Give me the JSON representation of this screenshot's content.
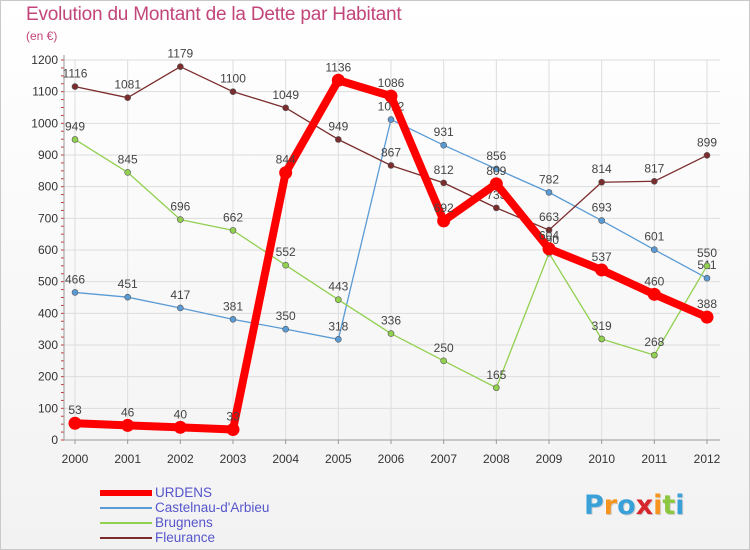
{
  "title": "Evolution du Montant de la Dette par Habitant",
  "unit_label": "(en €)",
  "chart_data": {
    "type": "line",
    "title": "Evolution du Montant de la Dette par Habitant",
    "subtitle": "(en €)",
    "xlabel": "",
    "ylabel": "",
    "x": [
      "2000",
      "2001",
      "2002",
      "2003",
      "2004",
      "2005",
      "2006",
      "2007",
      "2008",
      "2009",
      "2010",
      "2011",
      "2012"
    ],
    "ylim": [
      0,
      1200
    ],
    "yticks": [
      0,
      100,
      200,
      300,
      400,
      500,
      600,
      700,
      800,
      900,
      1000,
      1100,
      1200
    ],
    "grid": true,
    "legend_position": "bottom-left",
    "series": [
      {
        "name": "URDENS",
        "color": "#ff0000",
        "emphasis": true,
        "values": [
          53,
          46,
          40,
          33,
          844,
          1136,
          1086,
          692,
          809,
          604,
          537,
          460,
          388
        ],
        "labels": [
          "53",
          "46",
          "40",
          "33",
          "844",
          "1136",
          "1086",
          "692",
          "809",
          "604",
          "537",
          "460",
          "388"
        ]
      },
      {
        "name": "Castelnau-d'Arbieu",
        "color": "#5b9bd5",
        "values": [
          466,
          451,
          417,
          381,
          350,
          318,
          1012,
          931,
          856,
          782,
          693,
          601,
          511
        ],
        "labels": [
          "466",
          "451",
          "417",
          "381",
          "350",
          "318",
          "1012",
          "931",
          "856",
          "782",
          "693",
          "601",
          "511"
        ]
      },
      {
        "name": "Brugnens",
        "color": "#92d050",
        "values": [
          949,
          845,
          696,
          662,
          552,
          443,
          336,
          250,
          165,
          590,
          319,
          268,
          550
        ],
        "labels": [
          "949",
          "845",
          "696",
          "662",
          "552",
          "443",
          "336",
          "250",
          "165",
          "590",
          "319",
          "268",
          "550"
        ]
      },
      {
        "name": "Fleurance",
        "color": "#7b2c2c",
        "values": [
          1116,
          1081,
          1179,
          1100,
          1049,
          949,
          867,
          812,
          733,
          663,
          814,
          817,
          899
        ],
        "labels": [
          "1116",
          "1081",
          "1179",
          "1100",
          "1049",
          "949",
          "867",
          "812",
          "733",
          "663",
          "814",
          "817",
          "899"
        ]
      }
    ]
  },
  "legend": {
    "items": [
      {
        "label": "URDENS",
        "color": "#ff0000"
      },
      {
        "label": "Castelnau-d'Arbieu",
        "color": "#5b9bd5"
      },
      {
        "label": "Brugnens",
        "color": "#92d050"
      },
      {
        "label": "Fleurance",
        "color": "#7b2c2c"
      }
    ]
  },
  "logo": {
    "text": "Proxiti",
    "letter_colors": [
      "#3aa0d8",
      "#f7941d",
      "#3aa0d8",
      "#d6262b",
      "#f7941d",
      "#8dc63f",
      "#3aa0d8"
    ]
  }
}
